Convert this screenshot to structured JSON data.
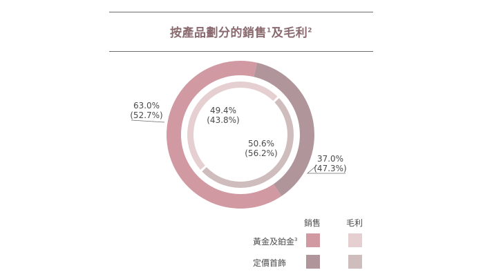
{
  "title": "按產品劃分的銷售",
  "title_sup1": "1",
  "title_mid": "及毛利",
  "title_sup2": "2",
  "colors": {
    "sales_gold": "#d19aa3",
    "sales_jewellery": "#b0969a",
    "margin_gold": "#e6cfd0",
    "margin_jewellery": "#cfbcbd",
    "title": "#8a6a6e",
    "rule": "#6b6b6b"
  },
  "chart_data": {
    "type": "pie",
    "variant": "nested-donut",
    "categories": [
      "黃金及鉑金",
      "定價首飾"
    ],
    "series": [
      {
        "name": "銷售",
        "values": [
          63.0,
          37.0
        ],
        "labels": [
          "63.0%",
          "37.0%"
        ],
        "sublabels": [
          "(52.7%)",
          "(47.3%)"
        ]
      },
      {
        "name": "毛利",
        "values": [
          49.4,
          50.6
        ],
        "labels": [
          "49.4%",
          "50.6%"
        ],
        "sublabels": [
          "(43.8%)",
          "(56.2%)"
        ]
      }
    ]
  },
  "legend": {
    "col_sales": "銷售",
    "col_margin": "毛利",
    "row1_label": "黃金及鉑金",
    "row1_sup": "3",
    "row2_label": "定價首飾"
  }
}
